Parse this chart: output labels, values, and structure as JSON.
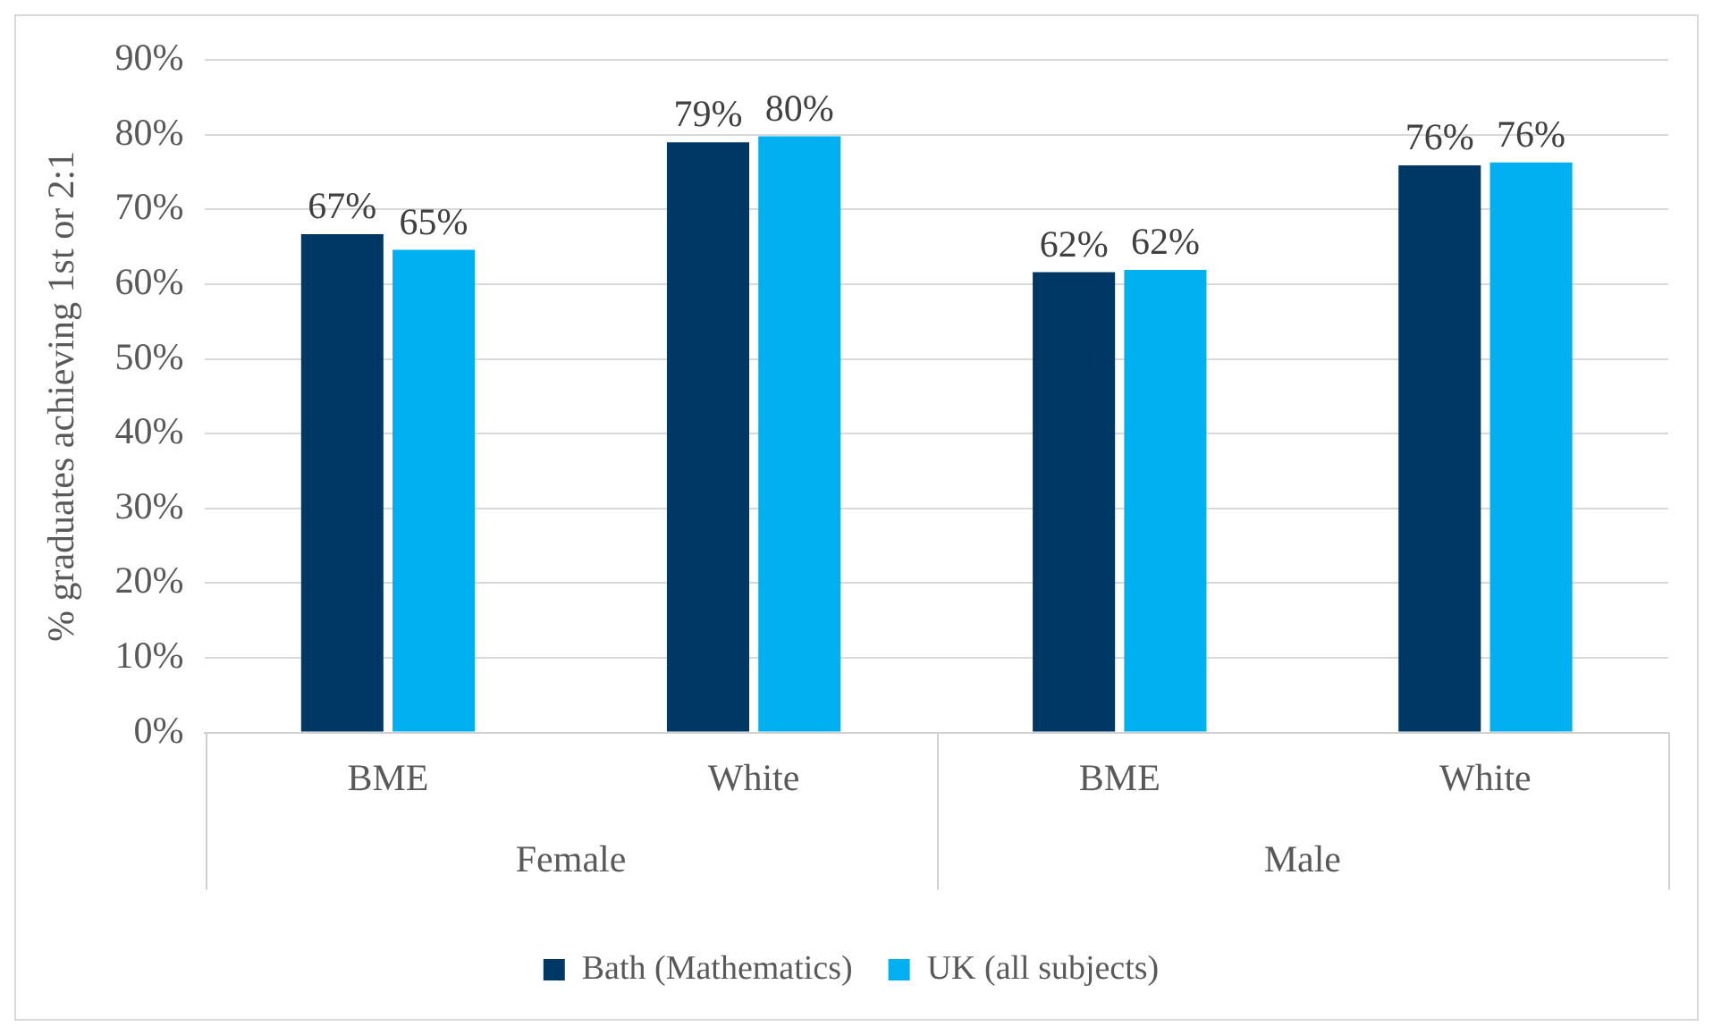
{
  "chart_data": {
    "type": "bar",
    "ylabel": "% graduates achieving 1st or 2:1",
    "categories": [
      "BME",
      "White",
      "BME",
      "White"
    ],
    "series": [
      {
        "name": "Bath (Mathematics)",
        "color": "#003865",
        "values": [
          66.7,
          79,
          61.6,
          75.9
        ],
        "value_labels": [
          "67%",
          "79%",
          "62%",
          "76%"
        ]
      },
      {
        "name": "UK (all subjects)",
        "color": "#00b0f0",
        "values": [
          64.6,
          79.8,
          61.9,
          76.3
        ],
        "value_labels": [
          "65%",
          "80%",
          "62%",
          "76%"
        ]
      }
    ],
    "ylim": [
      0,
      90
    ],
    "yticks": [
      {
        "value": 0,
        "label": "0%"
      },
      {
        "value": 10,
        "label": "10%"
      },
      {
        "value": 20,
        "label": "20%"
      },
      {
        "value": 30,
        "label": "30%"
      },
      {
        "value": 40,
        "label": "40%"
      },
      {
        "value": 50,
        "label": "50%"
      },
      {
        "value": 60,
        "label": "60%"
      },
      {
        "value": 70,
        "label": "70%"
      },
      {
        "value": 80,
        "label": "80%"
      },
      {
        "value": 90,
        "label": "90%"
      }
    ],
    "grid": "y",
    "legend": "bottom",
    "annotations": [
      "Female",
      "Male"
    ]
  }
}
